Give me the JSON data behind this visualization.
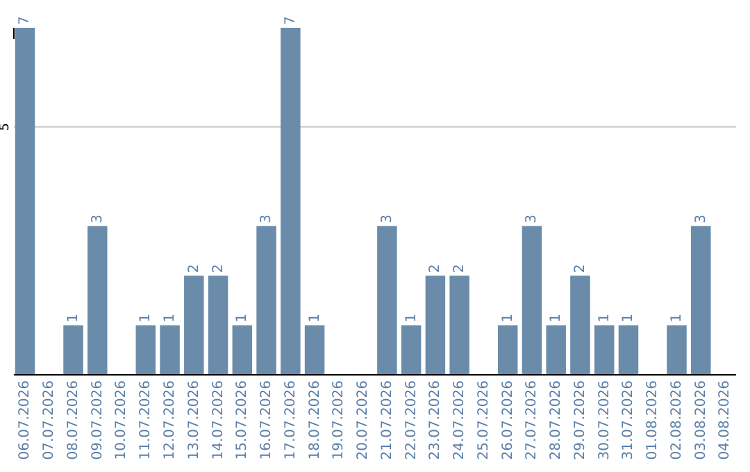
{
  "chart_data": {
    "type": "bar",
    "categories": [
      "06.07.2026",
      "07.07.2026",
      "08.07.2026",
      "09.07.2026",
      "10.07.2026",
      "11.07.2026",
      "12.07.2026",
      "13.07.2026",
      "14.07.2026",
      "15.07.2026",
      "16.07.2026",
      "17.07.2026",
      "18.07.2026",
      "19.07.2026",
      "20.07.2026",
      "21.07.2026",
      "22.07.2026",
      "23.07.2026",
      "24.07.2026",
      "25.07.2026",
      "26.07.2026",
      "27.07.2026",
      "28.07.2026",
      "29.07.2026",
      "30.07.2026",
      "31.07.2026",
      "01.08.2026",
      "02.08.2026",
      "03.08.2026",
      "04.08.2026"
    ],
    "values": [
      7,
      0,
      1,
      3,
      0,
      1,
      1,
      2,
      2,
      1,
      3,
      7,
      1,
      0,
      0,
      3,
      1,
      2,
      2,
      0,
      1,
      3,
      1,
      2,
      1,
      1,
      0,
      1,
      3,
      0
    ],
    "value_labels": [
      "7",
      null,
      "1",
      "3",
      null,
      "1",
      "1",
      "2",
      "2",
      "1",
      "3",
      "7",
      "1",
      null,
      null,
      "3",
      "1",
      "2",
      "2",
      null,
      "1",
      "3",
      "1",
      "2",
      "1",
      "1",
      null,
      "1",
      "3",
      null
    ],
    "color": "#6a8caa",
    "ylim": [
      0,
      7
    ],
    "yticks": [
      5
    ],
    "grid": "y"
  }
}
